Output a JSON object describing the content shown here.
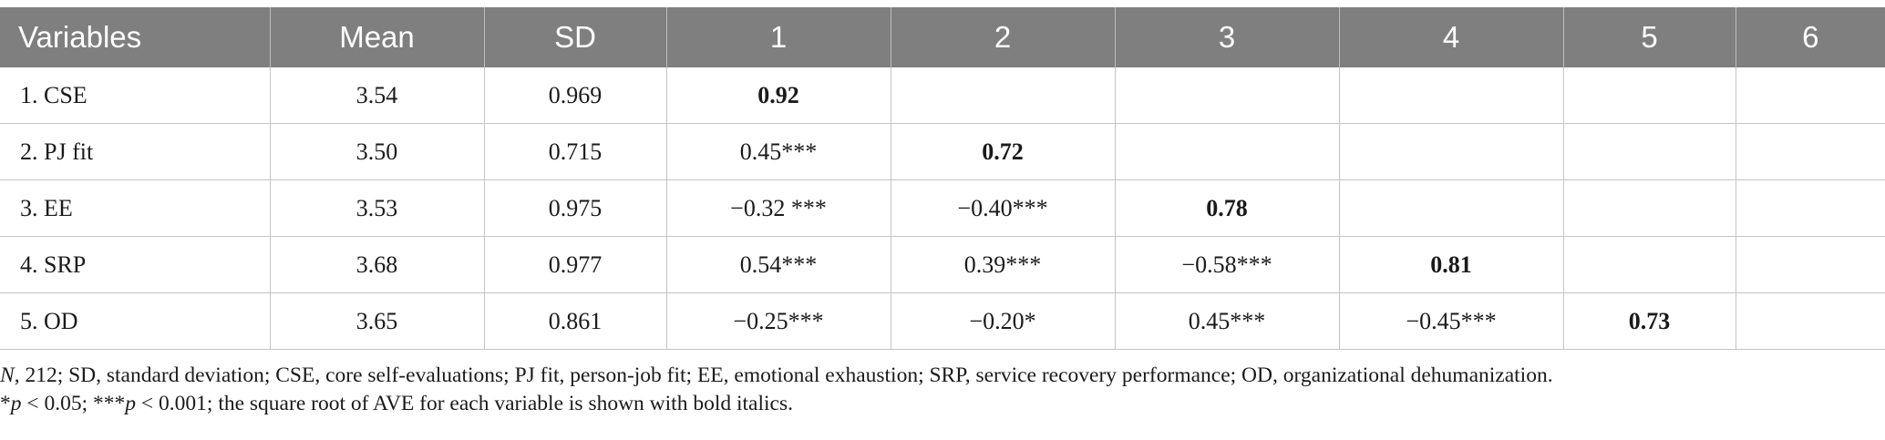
{
  "table": {
    "headers": [
      "Variables",
      "Mean",
      "SD",
      "1",
      "2",
      "3",
      "4",
      "5",
      "6"
    ],
    "rows": [
      [
        "1. CSE",
        "3.54",
        "0.969",
        "0.92",
        "",
        "",
        "",
        "",
        ""
      ],
      [
        "2. PJ fit",
        "3.50",
        "0.715",
        "0.45***",
        "0.72",
        "",
        "",
        "",
        ""
      ],
      [
        "3. EE",
        "3.53",
        "0.975",
        "−0.32 ***",
        "−0.40***",
        "0.78",
        "",
        "",
        ""
      ],
      [
        "4. SRP",
        "3.68",
        "0.977",
        "0.54***",
        "0.39***",
        "−0.58***",
        "0.81",
        "",
        ""
      ],
      [
        "5. OD",
        "3.65",
        "0.861",
        "−0.25***",
        "−0.20*",
        "0.45***",
        "−0.45***",
        "0.73",
        ""
      ]
    ]
  },
  "notes": {
    "line1_n": "N",
    "line1_rest": ", 212; SD, standard deviation; CSE, core self-evaluations; PJ fit, person-job fit; EE, emotional exhaustion; SRP, service recovery performance; OD, organizational dehumanization.",
    "line2_a": "*",
    "line2_p1": "p",
    "line2_b": " < 0.05; ***",
    "line2_p2": "p",
    "line2_c": " < 0.001; the square root of AVE for each variable is shown with bold italics."
  }
}
